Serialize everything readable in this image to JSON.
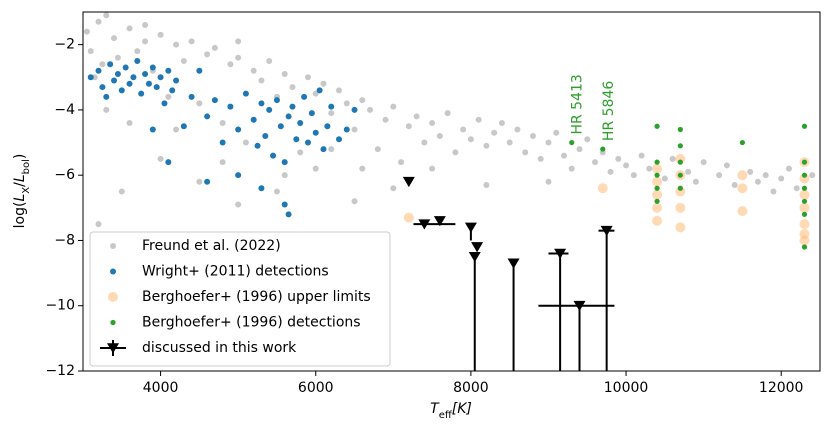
{
  "chart_data": {
    "type": "scatter",
    "x_label": [
      "T",
      "eff",
      "[K]"
    ],
    "y_label": [
      "log(",
      "L",
      "X",
      "/",
      "L",
      "bol",
      ")"
    ],
    "xlim": [
      3000,
      12500
    ],
    "ylim": [
      -12,
      -1
    ],
    "xticks": [
      4000,
      6000,
      8000,
      10000,
      12000
    ],
    "yticks": [
      {
        "value": -2,
        "label": "−2"
      },
      {
        "value": -4,
        "label": "−4"
      },
      {
        "value": -6,
        "label": "−6"
      },
      {
        "value": -8,
        "label": "−8"
      },
      {
        "value": -10,
        "label": "−10"
      },
      {
        "value": -12,
        "label": "−12"
      }
    ],
    "legend": "lower left",
    "annotations": [
      "HR 5413",
      "HR 5846"
    ],
    "series": [
      {
        "name": "Freund et al. (2022)",
        "color": "#c8c8c8",
        "marker": "circle",
        "x": [
          3050,
          3100,
          3150,
          3200,
          3250,
          3300,
          3400,
          3450,
          3500,
          3600,
          3700,
          3800,
          3900,
          4000,
          4100,
          4200,
          4300,
          4400,
          4500,
          4600,
          4700,
          4800,
          4900,
          5000,
          5100,
          5200,
          5300,
          5400,
          5500,
          5600,
          5700,
          5800,
          5900,
          6000,
          6100,
          6200,
          6300,
          6400,
          6500,
          6600,
          6700,
          6800,
          6900,
          7000,
          7100,
          7200,
          7300,
          7400,
          7500,
          7600,
          7700,
          7800,
          7900,
          8000,
          8100,
          8200,
          8300,
          8400,
          8500,
          8600,
          8700,
          8800,
          8900,
          9000,
          9100,
          9200,
          9300,
          9400,
          9500,
          9600,
          9700,
          9800,
          9900,
          10000,
          10100,
          10200,
          10300,
          10500,
          10600,
          10800,
          10900,
          11000,
          11200,
          11300,
          11400,
          11600,
          11700,
          11800,
          11900,
          12000,
          12100,
          12200,
          12400,
          3200,
          3500,
          4000,
          4500,
          5000,
          5500,
          6000,
          6500,
          7000,
          3600,
          4200,
          4800,
          5600,
          6200,
          6600,
          7500,
          8200,
          9000,
          3300,
          3800,
          5000
        ],
        "values": [
          -1.6,
          -2.2,
          -3.0,
          -1.3,
          -2.6,
          -4.0,
          -1.8,
          -2.4,
          -3.4,
          -1.5,
          -2.2,
          -1.9,
          -2.8,
          -1.7,
          -3.6,
          -2.0,
          -2.5,
          -1.9,
          -3.8,
          -2.3,
          -2.1,
          -4.4,
          -2.6,
          -2.4,
          -5.0,
          -2.8,
          -3.1,
          -2.5,
          -3.6,
          -2.9,
          -3.3,
          -5.3,
          -3.0,
          -3.5,
          -3.2,
          -4.1,
          -3.4,
          -3.8,
          -4.6,
          -3.7,
          -4.0,
          -5.2,
          -4.3,
          -3.9,
          -5.6,
          -4.5,
          -4.2,
          -5.0,
          -4.4,
          -4.8,
          -4.1,
          -5.3,
          -4.6,
          -4.9,
          -4.3,
          -5.1,
          -4.7,
          -4.4,
          -5.0,
          -4.6,
          -5.3,
          -4.8,
          -5.5,
          -5.0,
          -4.7,
          -5.4,
          -5.8,
          -5.2,
          -4.9,
          -5.6,
          -5.3,
          -5.9,
          -5.5,
          -5.7,
          -6.0,
          -5.4,
          -5.8,
          -6.1,
          -5.5,
          -5.9,
          -6.2,
          -5.6,
          -6.0,
          -5.7,
          -6.3,
          -5.9,
          -6.2,
          -6.0,
          -6.5,
          -6.1,
          -5.8,
          -6.4,
          -6.0,
          -7.5,
          -6.5,
          -5.5,
          -6.2,
          -6.9,
          -6.5,
          -5.8,
          -6.8,
          -6.4,
          -4.4,
          -4.6,
          -5.6,
          -6.0,
          -5.2,
          -5.8,
          -5.8,
          -6.3,
          -6.2,
          -1.1,
          -1.4,
          -1.9
        ]
      },
      {
        "name": "Wright+ (2011) detections",
        "color": "#1f77b4",
        "marker": "circle",
        "x": [
          3100,
          3200,
          3250,
          3300,
          3350,
          3400,
          3450,
          3500,
          3550,
          3600,
          3650,
          3700,
          3750,
          3800,
          3850,
          3900,
          3950,
          4000,
          4050,
          4100,
          4150,
          4200,
          4300,
          4400,
          4500,
          4600,
          4700,
          4800,
          4900,
          5000,
          5100,
          5200,
          5250,
          5300,
          5350,
          5400,
          5450,
          5500,
          5550,
          5600,
          5650,
          5700,
          5750,
          5800,
          5850,
          5900,
          5950,
          6000,
          6050,
          6100,
          6150,
          6200,
          6300,
          6400,
          6500,
          4600,
          5000,
          5300,
          5600,
          5650,
          4100,
          3900
        ],
        "values": [
          -3.0,
          -2.8,
          -3.3,
          -3.6,
          -2.6,
          -3.1,
          -2.9,
          -3.4,
          -2.7,
          -3.2,
          -3.0,
          -2.5,
          -3.5,
          -2.9,
          -3.2,
          -2.7,
          -3.3,
          -3.0,
          -3.8,
          -2.8,
          -3.4,
          -3.1,
          -4.5,
          -3.6,
          -2.8,
          -4.2,
          -3.7,
          -5.0,
          -3.9,
          -4.6,
          -3.5,
          -4.3,
          -5.1,
          -3.8,
          -4.8,
          -4.0,
          -5.4,
          -3.7,
          -4.5,
          -5.6,
          -4.2,
          -3.9,
          -4.9,
          -4.4,
          -3.6,
          -5.0,
          -4.1,
          -4.7,
          -3.4,
          -5.2,
          -4.5,
          -3.9,
          -4.9,
          -4.6,
          -4.0,
          -6.2,
          -6.0,
          -6.4,
          -6.9,
          -7.2,
          -5.6,
          -4.6
        ]
      },
      {
        "name": "Berghoefer+ (1996) upper limits",
        "color": "#ffbb78",
        "marker": "big-circle",
        "x": [
          7200,
          9700,
          10400,
          10400,
          10400,
          10400,
          10400,
          10700,
          10700,
          10700,
          10700,
          10700,
          11500,
          11500,
          11500,
          12300,
          12300,
          12300,
          12300,
          12300,
          12300,
          12300
        ],
        "values": [
          -7.3,
          -6.4,
          -5.8,
          -6.2,
          -6.6,
          -7.0,
          -7.4,
          -5.5,
          -6.0,
          -6.5,
          -7.0,
          -7.6,
          -6.0,
          -6.4,
          -7.1,
          -5.6,
          -6.1,
          -6.6,
          -7.0,
          -7.5,
          -8.0,
          -7.8
        ]
      },
      {
        "name": "Berghoefer+ (1996) detections",
        "color": "#2ca02c",
        "marker": "small-circle",
        "x": [
          9300,
          9700,
          10400,
          10400,
          10400,
          10400,
          10400,
          10700,
          10700,
          10700,
          10700,
          10700,
          11500,
          12300,
          12300,
          12300,
          12300,
          12300,
          12300,
          12300
        ],
        "values": [
          -5.0,
          -5.2,
          -4.5,
          -5.6,
          -6.0,
          -6.4,
          -6.8,
          -4.6,
          -5.1,
          -5.6,
          -6.0,
          -6.4,
          -5.0,
          -4.5,
          -5.6,
          -6.0,
          -6.4,
          -6.8,
          -7.2,
          -8.2
        ]
      },
      {
        "name": "discussed in this work",
        "color": "#000000",
        "marker": "triangle-down",
        "x": [
          7200,
          7400,
          7600,
          8000,
          8080,
          8050,
          8550,
          9150,
          9400,
          9750
        ],
        "values": [
          -6.2,
          -7.5,
          -7.4,
          -7.6,
          -8.2,
          -8.5,
          -8.7,
          -8.4,
          -10.0,
          -7.7
        ],
        "xmin": [
          null,
          7260,
          null,
          null,
          null,
          null,
          null,
          9000,
          8870,
          9645
        ],
        "xmax": [
          null,
          7800,
          null,
          null,
          null,
          null,
          null,
          9258,
          9850,
          9850
        ],
        "ymin": [
          null,
          null,
          null,
          -8.0,
          null,
          -12,
          -12,
          -12,
          -12,
          -12
        ]
      }
    ]
  }
}
